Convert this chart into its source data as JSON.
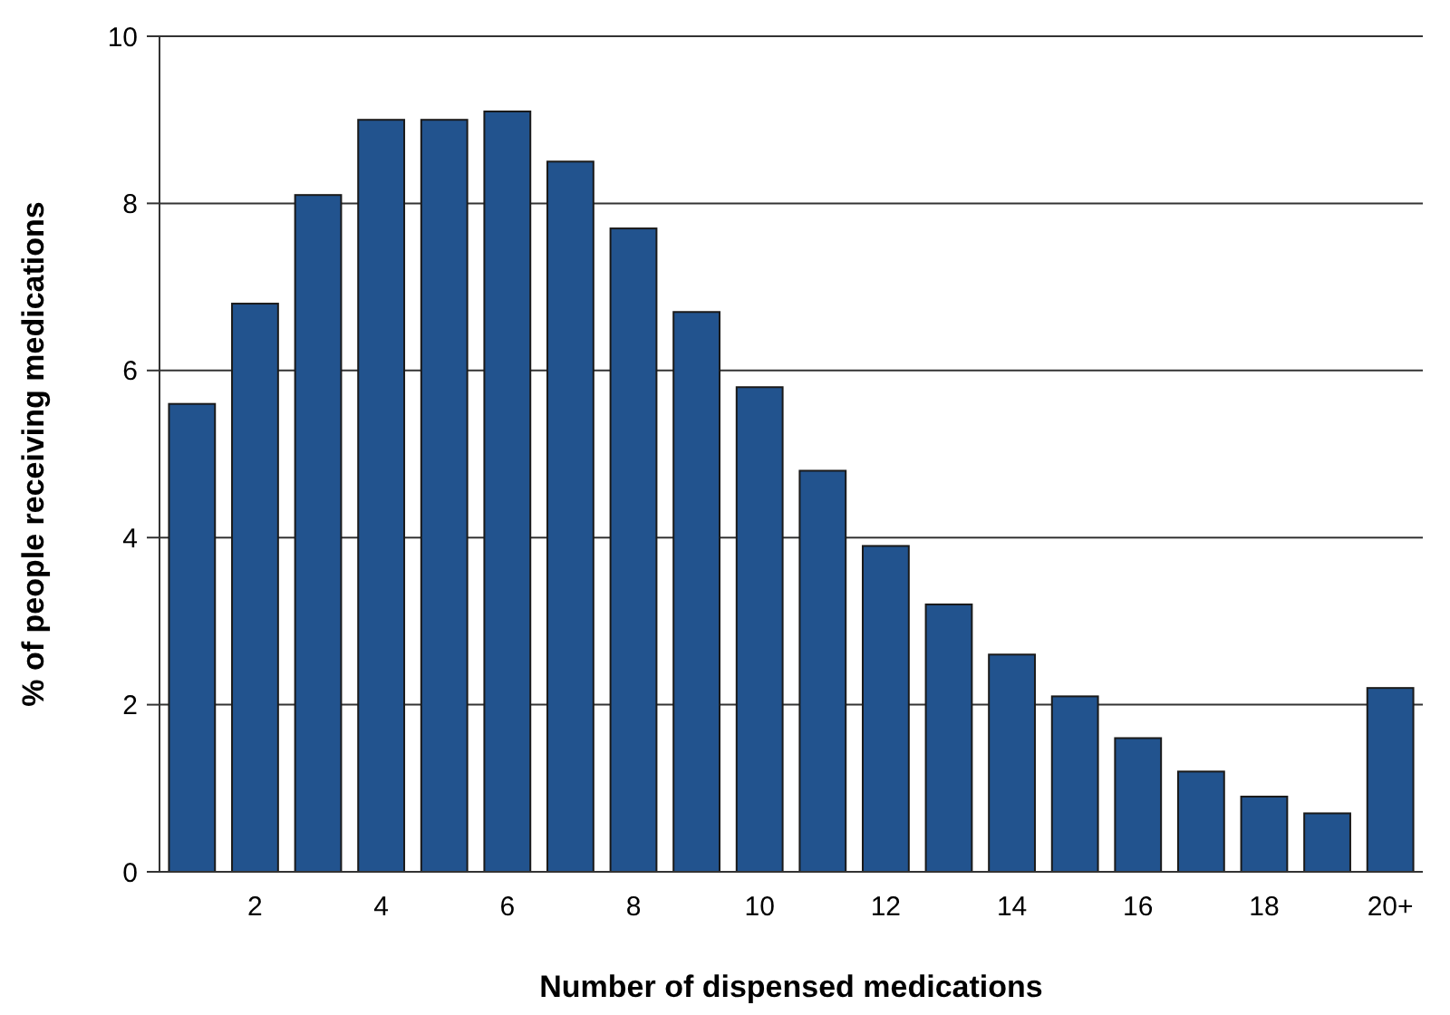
{
  "chart_data": {
    "type": "bar",
    "xlabel": "Number of dispensed medications",
    "ylabel": "% of people receiving medications",
    "categories": [
      null,
      "2",
      null,
      "4",
      null,
      "6",
      null,
      "8",
      null,
      "10",
      null,
      "12",
      null,
      "14",
      null,
      "16",
      null,
      "18",
      null,
      "20+"
    ],
    "values": [
      5.6,
      6.8,
      8.1,
      9.0,
      9.0,
      9.1,
      8.5,
      7.7,
      6.7,
      5.8,
      4.8,
      3.9,
      3.2,
      2.6,
      2.1,
      1.6,
      1.2,
      0.9,
      0.7,
      2.2
    ],
    "color": "#22538e",
    "ylim": [
      0,
      10
    ],
    "yticks": [
      0,
      2,
      4,
      6,
      8,
      10
    ],
    "grid": "y"
  }
}
